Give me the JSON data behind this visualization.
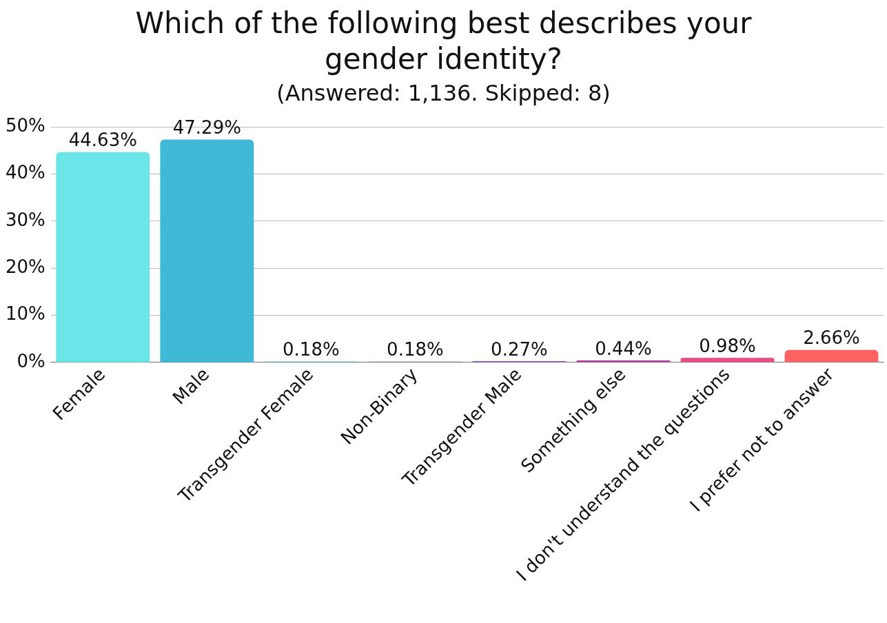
{
  "chart_data": {
    "type": "bar",
    "title": "Which of the following best describes your gender identity?",
    "subtitle": "(Answered: 1,136. Skipped: 8)",
    "categories": [
      "Female",
      "Male",
      "Transgender Female",
      "Non-Binary",
      "Transgender Male",
      "Something else",
      "I don't understand the questions",
      "I prefer not to answer"
    ],
    "values": [
      44.63,
      47.29,
      0.18,
      0.18,
      0.27,
      0.44,
      0.98,
      2.66
    ],
    "value_labels": [
      "44.63%",
      "47.29%",
      "0.18%",
      "0.18%",
      "0.27%",
      "0.44%",
      "0.98%",
      "2.66%"
    ],
    "colors": [
      "#6ce5e8",
      "#41b8d5",
      "#2d8bba",
      "#506aac",
      "#8e5ab6",
      "#c03aa0",
      "#ea4c85",
      "#ff6361"
    ],
    "ylim": [
      0,
      50
    ],
    "yticks": [
      {
        "value": 0,
        "label": "0%"
      },
      {
        "value": 10,
        "label": "10%"
      },
      {
        "value": 20,
        "label": "20%"
      },
      {
        "value": 30,
        "label": "30%"
      },
      {
        "value": 40,
        "label": "40%"
      },
      {
        "value": 50,
        "label": "50%"
      }
    ],
    "grid": "y",
    "legend": false
  }
}
